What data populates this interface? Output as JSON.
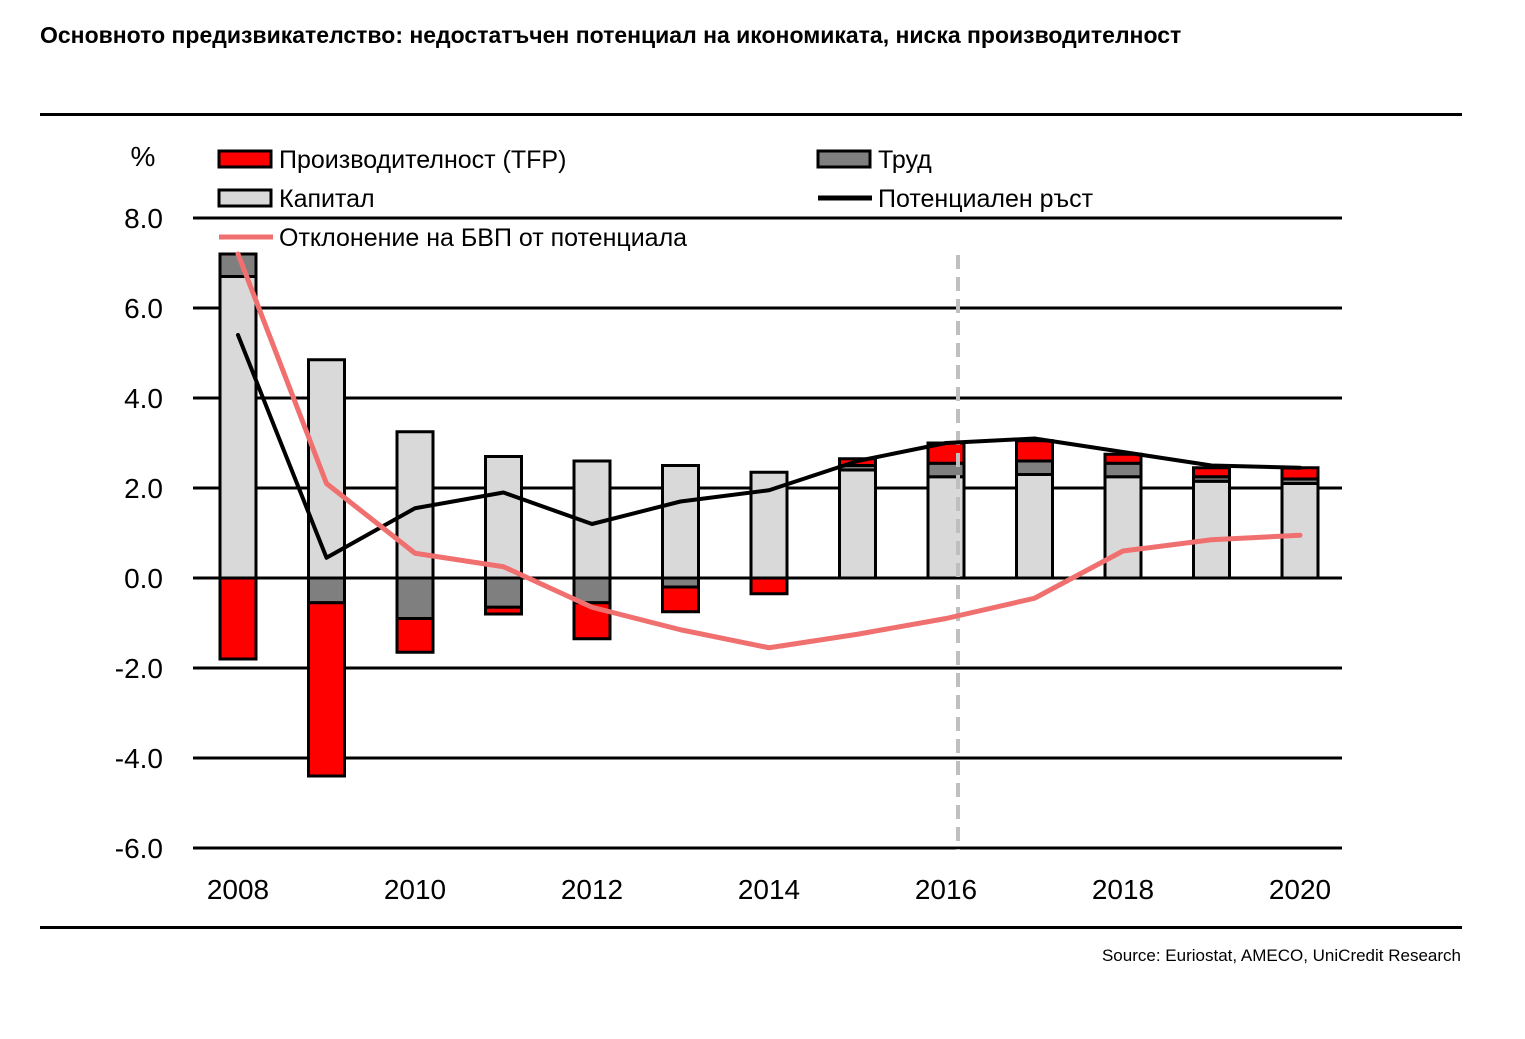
{
  "title": "Основното предизвикателство: недостатъчен потенциал на икономиката, ниска производителност",
  "source": "Source: Euriostat, AMECO, UniCredit Research",
  "chart_data": {
    "type": "bar",
    "subtype": "stacked bar with line overlays",
    "y_unit": "%",
    "ylim": [
      -6,
      8
    ],
    "yticks": [
      "8.0",
      "6.0",
      "4.0",
      "2.0",
      "0.0",
      "-2.0",
      "-4.0",
      "-6.0"
    ],
    "ytick_values": [
      8,
      6,
      4,
      2,
      0,
      -2,
      -4,
      -6
    ],
    "years": [
      2008,
      2009,
      2010,
      2011,
      2012,
      2013,
      2014,
      2015,
      2016,
      2017,
      2018,
      2019,
      2020
    ],
    "xtick_labels": [
      "2008",
      "2010",
      "2012",
      "2014",
      "2016",
      "2018",
      "2020"
    ],
    "xtick_years": [
      2008,
      2010,
      2012,
      2014,
      2016,
      2018,
      2020
    ],
    "grid": "horizontal",
    "legend_position": "top-left",
    "forecast_marker_year": 2016,
    "colors": {
      "tfp": "#ff0000",
      "labour": "#7f7f7f",
      "capital": "#d9d9d9",
      "potential": "#000000",
      "gap": "#f07070",
      "forecast_line": "#bfbfbf"
    },
    "series": [
      {
        "key": "capital",
        "name": "Капитал",
        "values": [
          6.7,
          4.85,
          3.25,
          2.7,
          2.6,
          2.5,
          2.35,
          2.4,
          2.25,
          2.3,
          2.25,
          2.15,
          2.1
        ]
      },
      {
        "key": "labour",
        "name": "Труд",
        "values": [
          0.5,
          -0.55,
          -0.9,
          -0.65,
          -0.55,
          -0.2,
          0.0,
          0.1,
          0.3,
          0.3,
          0.3,
          0.1,
          0.1
        ]
      },
      {
        "key": "tfp",
        "name": "Производителност (TFP)",
        "values": [
          -1.8,
          -3.85,
          -0.75,
          -0.15,
          -0.8,
          -0.55,
          -0.35,
          0.15,
          0.45,
          0.45,
          0.2,
          0.2,
          0.25
        ]
      },
      {
        "key": "potential",
        "name": "Потенциален ръст",
        "values": [
          5.4,
          0.45,
          1.55,
          1.9,
          1.2,
          1.7,
          1.95,
          2.6,
          3.0,
          3.1,
          2.8,
          2.5,
          2.45
        ]
      },
      {
        "key": "gap",
        "name": "Отклонение на БВП от потенциала",
        "values": [
          7.2,
          2.1,
          0.55,
          0.25,
          -0.65,
          -1.15,
          -1.55,
          -1.25,
          -0.9,
          -0.45,
          0.6,
          0.85,
          0.95
        ]
      }
    ]
  }
}
